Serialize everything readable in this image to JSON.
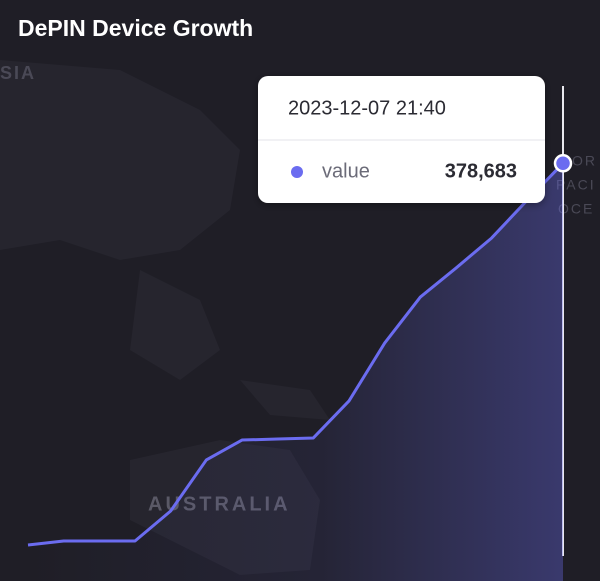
{
  "chart_data": {
    "type": "line",
    "title": "DePIN Device Growth",
    "categories": [
      null,
      null,
      null,
      null,
      null,
      null,
      null,
      null,
      null,
      null,
      null,
      null,
      null,
      null,
      null,
      "2023-12-07 21:40"
    ],
    "series": [
      {
        "name": "value",
        "color": "#6b6cf0",
        "values": [
          14300,
          18100,
          18100,
          18100,
          46800,
          95500,
          114500,
          115500,
          116500,
          151800,
          207100,
          251000,
          278700,
          307400,
          343600,
          378683
        ],
        "value_labels": [
          null,
          null,
          null,
          null,
          null,
          null,
          null,
          null,
          null,
          null,
          null,
          null,
          null,
          null,
          null,
          "378,683"
        ]
      }
    ],
    "ylim": [
      0,
      420000
    ],
    "map_labels": [
      "SIA",
      "AUSTRALIA",
      "OR",
      "PACI",
      "OCE"
    ]
  }
}
